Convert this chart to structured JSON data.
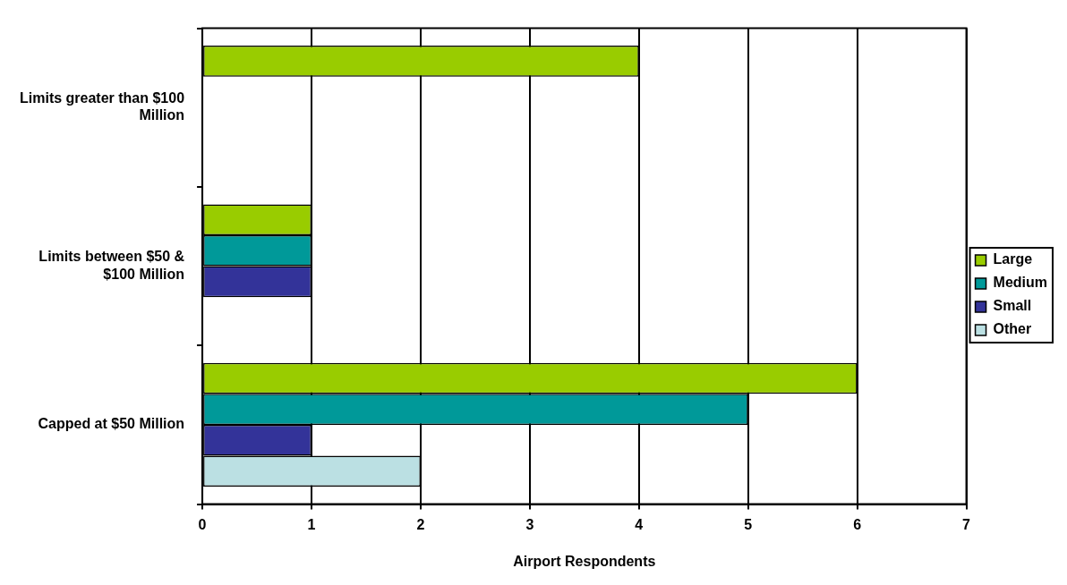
{
  "chart_data": {
    "type": "bar",
    "orientation": "horizontal",
    "xlabel": "Airport Respondents",
    "categories": [
      "Limits greater than $100 Million",
      "Limits between $50 & $100 Million",
      "Capped at $50 Million"
    ],
    "series": [
      {
        "name": "Large",
        "color": "#99cc00",
        "values": [
          4,
          1,
          6
        ]
      },
      {
        "name": "Medium",
        "color": "#009999",
        "values": [
          null,
          1,
          5
        ]
      },
      {
        "name": "Small",
        "color": "#333399",
        "values": [
          null,
          1,
          1
        ]
      },
      {
        "name": "Other",
        "color": "#bbe0e3",
        "values": [
          null,
          null,
          2
        ]
      }
    ],
    "xlim": [
      0,
      7
    ],
    "xticks": [
      0,
      1,
      2,
      3,
      4,
      5,
      6,
      7
    ],
    "grid": "x",
    "legend": "right"
  }
}
